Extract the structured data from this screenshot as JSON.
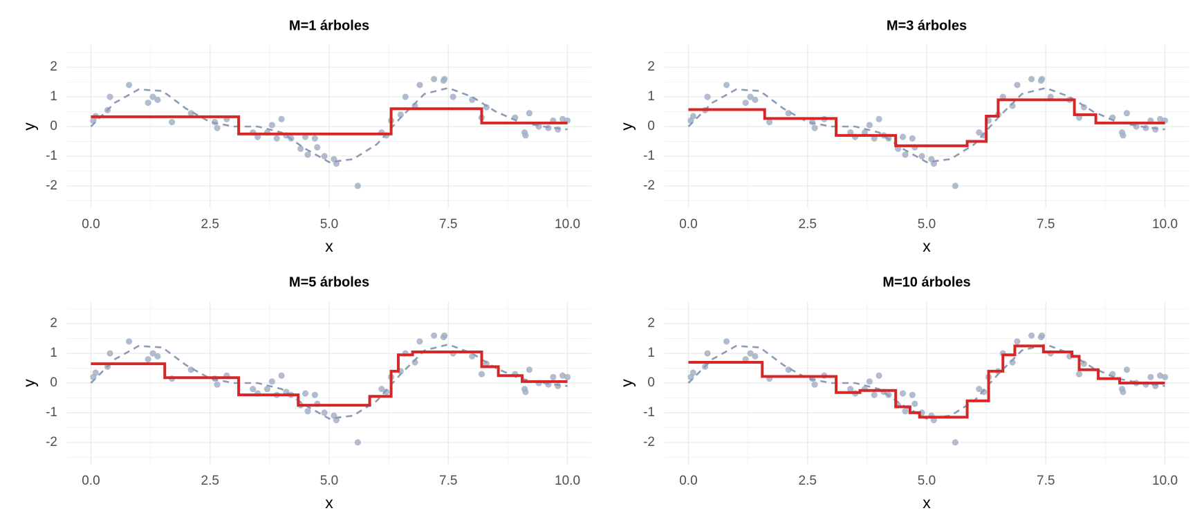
{
  "chart_data": [
    {
      "type": "step",
      "title": "M=1 árboles",
      "xlabel": "x",
      "ylabel": "y",
      "xlim": [
        -0.5,
        10.5
      ],
      "ylim": [
        -2.75,
        2.75
      ],
      "xticks": [
        {
          "value": 0,
          "label": "0.0"
        },
        2.5,
        {
          "value": 5,
          "label": "5.0"
        },
        7.5,
        {
          "value": 10,
          "label": "10.0"
        }
      ],
      "yticks": [
        -2,
        -1,
        0,
        1,
        2
      ],
      "grid": true,
      "points": {
        "color": "#a3b1c6",
        "x": [
          0.05,
          0.1,
          0.35,
          0.4,
          0.8,
          1.2,
          1.3,
          1.4,
          1.7,
          2.1,
          2.6,
          2.65,
          2.85,
          3.4,
          3.5,
          3.7,
          3.8,
          3.9,
          4.0,
          4.1,
          4.2,
          4.4,
          4.5,
          4.55,
          4.7,
          4.75,
          4.9,
          5.1,
          5.15,
          5.6,
          6.1,
          6.2,
          6.3,
          6.5,
          6.6,
          6.8,
          6.9,
          7.2,
          7.4,
          7.42,
          7.6,
          8.0,
          8.2,
          8.3,
          8.9,
          9.1,
          9.12,
          9.2,
          9.4,
          9.6,
          9.7,
          9.8,
          9.9,
          10.0
        ],
        "values": [
          0.2,
          0.35,
          0.55,
          1.0,
          1.4,
          0.8,
          1.0,
          0.9,
          0.15,
          0.45,
          0.15,
          -0.05,
          0.25,
          -0.2,
          -0.35,
          -0.2,
          0.05,
          -0.4,
          0.25,
          -0.3,
          -0.4,
          -0.75,
          -0.35,
          -0.95,
          -0.4,
          -0.7,
          -1.0,
          -1.1,
          -1.25,
          -2.0,
          -0.2,
          -0.3,
          0.2,
          0.4,
          1.0,
          0.7,
          1.4,
          1.6,
          1.55,
          1.6,
          1.0,
          0.9,
          0.3,
          0.65,
          0.3,
          -0.2,
          -0.3,
          0.45,
          0.0,
          -0.05,
          0.2,
          -0.1,
          0.25,
          0.2
        ]
      },
      "curve": {
        "color": "#8a9bb3",
        "x": [
          0,
          0.5,
          1,
          1.5,
          2,
          2.5,
          3,
          3.5,
          4,
          4.5,
          5,
          5.5,
          6,
          6.5,
          7,
          7.5,
          8,
          8.5,
          9,
          9.5,
          10
        ],
        "values": [
          0,
          0.8,
          1.25,
          1.2,
          0.6,
          0.15,
          0,
          0,
          -0.2,
          -0.75,
          -1.2,
          -1.1,
          -0.6,
          0.3,
          1.1,
          1.3,
          1.0,
          0.5,
          0.15,
          0,
          -0.1
        ]
      },
      "steps": {
        "color": "#d62728",
        "x": [
          0,
          3.1,
          6.3,
          8.2,
          10
        ],
        "values": [
          0.33,
          -0.25,
          0.6,
          0.12,
          0.12
        ]
      }
    },
    {
      "type": "step",
      "title": "M=3 árboles",
      "xlabel": "x",
      "ylabel": "y",
      "xlim": [
        -0.5,
        10.5
      ],
      "ylim": [
        -2.75,
        2.75
      ],
      "xticks": [
        {
          "value": 0,
          "label": "0.0"
        },
        2.5,
        {
          "value": 5,
          "label": "5.0"
        },
        7.5,
        {
          "value": 10,
          "label": "10.0"
        }
      ],
      "yticks": [
        -2,
        -1,
        0,
        1,
        2
      ],
      "grid": true,
      "points": {
        "color": "#a3b1c6",
        "x": [
          0.05,
          0.1,
          0.35,
          0.4,
          0.8,
          1.2,
          1.3,
          1.4,
          1.7,
          2.1,
          2.6,
          2.65,
          2.85,
          3.4,
          3.5,
          3.7,
          3.8,
          3.9,
          4.0,
          4.1,
          4.2,
          4.4,
          4.5,
          4.55,
          4.7,
          4.75,
          4.9,
          5.1,
          5.15,
          5.6,
          6.1,
          6.2,
          6.3,
          6.5,
          6.6,
          6.8,
          6.9,
          7.2,
          7.4,
          7.42,
          7.6,
          8.0,
          8.2,
          8.3,
          8.9,
          9.1,
          9.12,
          9.2,
          9.4,
          9.6,
          9.7,
          9.8,
          9.9,
          10.0
        ],
        "values": [
          0.2,
          0.35,
          0.55,
          1.0,
          1.4,
          0.8,
          1.0,
          0.9,
          0.15,
          0.45,
          0.15,
          -0.05,
          0.25,
          -0.2,
          -0.35,
          -0.2,
          0.05,
          -0.4,
          0.25,
          -0.3,
          -0.4,
          -0.75,
          -0.35,
          -0.95,
          -0.4,
          -0.7,
          -1.0,
          -1.1,
          -1.25,
          -2.0,
          -0.2,
          -0.3,
          0.2,
          0.4,
          1.0,
          0.7,
          1.4,
          1.6,
          1.55,
          1.6,
          1.0,
          0.9,
          0.3,
          0.65,
          0.3,
          -0.2,
          -0.3,
          0.45,
          0.0,
          -0.05,
          0.2,
          -0.1,
          0.25,
          0.2
        ]
      },
      "curve": {
        "color": "#8a9bb3",
        "x": [
          0,
          0.5,
          1,
          1.5,
          2,
          2.5,
          3,
          3.5,
          4,
          4.5,
          5,
          5.5,
          6,
          6.5,
          7,
          7.5,
          8,
          8.5,
          9,
          9.5,
          10
        ],
        "values": [
          0,
          0.8,
          1.25,
          1.2,
          0.6,
          0.15,
          0,
          0,
          -0.2,
          -0.75,
          -1.2,
          -1.1,
          -0.6,
          0.3,
          1.1,
          1.3,
          1.0,
          0.5,
          0.15,
          0,
          -0.1
        ]
      },
      "steps": {
        "color": "#d62728",
        "x": [
          0,
          1.6,
          3.1,
          4.35,
          5.85,
          6.25,
          6.5,
          8.1,
          8.55,
          10
        ],
        "values": [
          0.57,
          0.27,
          -0.3,
          -0.65,
          -0.5,
          0.35,
          0.9,
          0.4,
          0.12,
          0.12
        ]
      }
    },
    {
      "type": "step",
      "title": "M=5 árboles",
      "xlabel": "x",
      "ylabel": "y",
      "xlim": [
        -0.5,
        10.5
      ],
      "ylim": [
        -2.75,
        2.75
      ],
      "xticks": [
        {
          "value": 0,
          "label": "0.0"
        },
        2.5,
        {
          "value": 5,
          "label": "5.0"
        },
        7.5,
        {
          "value": 10,
          "label": "10.0"
        }
      ],
      "yticks": [
        -2,
        -1,
        0,
        1,
        2
      ],
      "grid": true,
      "points": {
        "color": "#a3b1c6",
        "x": [
          0.05,
          0.1,
          0.35,
          0.4,
          0.8,
          1.2,
          1.3,
          1.4,
          1.7,
          2.1,
          2.6,
          2.65,
          2.85,
          3.4,
          3.5,
          3.7,
          3.8,
          3.9,
          4.0,
          4.1,
          4.2,
          4.4,
          4.5,
          4.55,
          4.7,
          4.75,
          4.9,
          5.1,
          5.15,
          5.6,
          6.1,
          6.2,
          6.3,
          6.5,
          6.6,
          6.8,
          6.9,
          7.2,
          7.4,
          7.42,
          7.6,
          8.0,
          8.2,
          8.3,
          8.9,
          9.1,
          9.12,
          9.2,
          9.4,
          9.6,
          9.7,
          9.8,
          9.9,
          10.0
        ],
        "values": [
          0.2,
          0.35,
          0.55,
          1.0,
          1.4,
          0.8,
          1.0,
          0.9,
          0.15,
          0.45,
          0.15,
          -0.05,
          0.25,
          -0.2,
          -0.35,
          -0.2,
          0.05,
          -0.4,
          0.25,
          -0.3,
          -0.4,
          -0.75,
          -0.35,
          -0.95,
          -0.4,
          -0.7,
          -1.0,
          -1.1,
          -1.25,
          -2.0,
          -0.2,
          -0.3,
          0.2,
          0.4,
          1.0,
          0.7,
          1.4,
          1.6,
          1.55,
          1.6,
          1.0,
          0.9,
          0.3,
          0.65,
          0.3,
          -0.2,
          -0.3,
          0.45,
          0.0,
          -0.05,
          0.2,
          -0.1,
          0.25,
          0.2
        ]
      },
      "curve": {
        "color": "#8a9bb3",
        "x": [
          0,
          0.5,
          1,
          1.5,
          2,
          2.5,
          3,
          3.5,
          4,
          4.5,
          5,
          5.5,
          6,
          6.5,
          7,
          7.5,
          8,
          8.5,
          9,
          9.5,
          10
        ],
        "values": [
          0,
          0.8,
          1.25,
          1.2,
          0.6,
          0.15,
          0,
          0,
          -0.2,
          -0.75,
          -1.2,
          -1.1,
          -0.6,
          0.3,
          1.1,
          1.3,
          1.0,
          0.5,
          0.15,
          0,
          -0.1
        ]
      },
      "steps": {
        "color": "#d62728",
        "x": [
          0,
          1.55,
          3.1,
          4.35,
          5.85,
          6.3,
          6.45,
          6.75,
          8.2,
          8.55,
          9.05,
          10
        ],
        "values": [
          0.65,
          0.18,
          -0.4,
          -0.75,
          -0.45,
          0.4,
          0.95,
          1.05,
          0.55,
          0.25,
          0.05,
          0.05
        ]
      }
    },
    {
      "type": "step",
      "title": "M=10 árboles",
      "xlabel": "x",
      "ylabel": "y",
      "xlim": [
        -0.5,
        10.5
      ],
      "ylim": [
        -2.75,
        2.75
      ],
      "xticks": [
        {
          "value": 0,
          "label": "0.0"
        },
        2.5,
        {
          "value": 5,
          "label": "5.0"
        },
        7.5,
        {
          "value": 10,
          "label": "10.0"
        }
      ],
      "yticks": [
        -2,
        -1,
        0,
        1,
        2
      ],
      "grid": true,
      "points": {
        "color": "#a3b1c6",
        "x": [
          0.05,
          0.1,
          0.35,
          0.4,
          0.8,
          1.2,
          1.3,
          1.4,
          1.7,
          2.1,
          2.6,
          2.65,
          2.85,
          3.4,
          3.5,
          3.7,
          3.8,
          3.9,
          4.0,
          4.1,
          4.2,
          4.4,
          4.5,
          4.55,
          4.7,
          4.75,
          4.9,
          5.1,
          5.15,
          5.6,
          6.1,
          6.2,
          6.3,
          6.5,
          6.6,
          6.8,
          6.9,
          7.2,
          7.4,
          7.42,
          7.6,
          8.0,
          8.2,
          8.3,
          8.9,
          9.1,
          9.12,
          9.2,
          9.4,
          9.6,
          9.7,
          9.8,
          9.9,
          10.0
        ],
        "values": [
          0.2,
          0.35,
          0.55,
          1.0,
          1.4,
          0.8,
          1.0,
          0.9,
          0.15,
          0.45,
          0.15,
          -0.05,
          0.25,
          -0.2,
          -0.35,
          -0.2,
          0.05,
          -0.4,
          0.25,
          -0.3,
          -0.4,
          -0.75,
          -0.35,
          -0.95,
          -0.4,
          -0.7,
          -1.0,
          -1.1,
          -1.25,
          -2.0,
          -0.2,
          -0.3,
          0.2,
          0.4,
          1.0,
          0.7,
          1.4,
          1.6,
          1.55,
          1.6,
          1.0,
          0.9,
          0.3,
          0.65,
          0.3,
          -0.2,
          -0.3,
          0.45,
          0.0,
          -0.05,
          0.2,
          -0.1,
          0.25,
          0.2
        ]
      },
      "curve": {
        "color": "#8a9bb3",
        "x": [
          0,
          0.5,
          1,
          1.5,
          2,
          2.5,
          3,
          3.5,
          4,
          4.5,
          5,
          5.5,
          6,
          6.5,
          7,
          7.5,
          8,
          8.5,
          9,
          9.5,
          10
        ],
        "values": [
          0,
          0.8,
          1.25,
          1.2,
          0.6,
          0.15,
          0,
          0,
          -0.2,
          -0.75,
          -1.2,
          -1.1,
          -0.6,
          0.3,
          1.1,
          1.3,
          1.0,
          0.5,
          0.15,
          0,
          -0.1
        ]
      },
      "steps": {
        "color": "#d62728",
        "x": [
          0,
          1.55,
          3.1,
          3.6,
          4.35,
          4.65,
          4.85,
          5.85,
          6.3,
          6.6,
          6.85,
          7.45,
          8.05,
          8.2,
          8.6,
          9.05,
          10
        ],
        "values": [
          0.7,
          0.22,
          -0.32,
          -0.25,
          -0.8,
          -1.0,
          -1.15,
          -0.6,
          0.4,
          0.95,
          1.25,
          1.05,
          0.9,
          0.45,
          0.15,
          0.0,
          0.0
        ]
      }
    }
  ]
}
